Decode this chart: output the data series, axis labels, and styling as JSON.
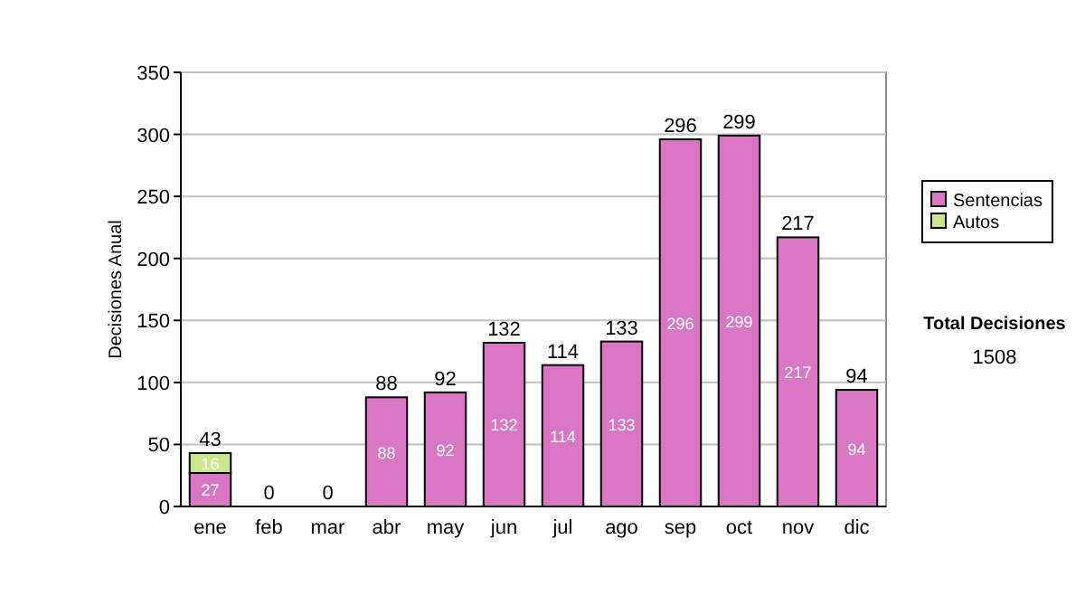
{
  "chart_data": {
    "type": "bar",
    "stacked": true,
    "ylabel": "Decisiones Anual",
    "categories": [
      "ene",
      "feb",
      "mar",
      "abr",
      "may",
      "jun",
      "jul",
      "ago",
      "sep",
      "oct",
      "nov",
      "dic"
    ],
    "series": [
      {
        "name": "Sentencias",
        "color": "#d977c4",
        "values": [
          27,
          0,
          0,
          88,
          92,
          132,
          114,
          133,
          296,
          299,
          217,
          94
        ],
        "value_labels": [
          "27",
          null,
          null,
          "88",
          "92",
          "132",
          "114",
          "133",
          "296",
          "299",
          "217",
          "94"
        ]
      },
      {
        "name": "Autos",
        "color": "#c8e88c",
        "values": [
          16,
          0,
          0,
          0,
          0,
          0,
          0,
          0,
          0,
          0,
          0,
          0
        ],
        "value_labels": [
          "16",
          null,
          null,
          null,
          null,
          null,
          null,
          null,
          null,
          null,
          null,
          null
        ]
      }
    ],
    "totals": [
      "43",
      "0",
      "0",
      "88",
      "92",
      "132",
      "114",
      "133",
      "296",
      "299",
      "217",
      "94"
    ],
    "ylim": [
      0,
      350
    ],
    "yticks": [
      0,
      50,
      100,
      150,
      200,
      250,
      300,
      350
    ],
    "grid": "y",
    "legend": "right",
    "annotations": [
      "Total Decisiones",
      "1508"
    ]
  }
}
